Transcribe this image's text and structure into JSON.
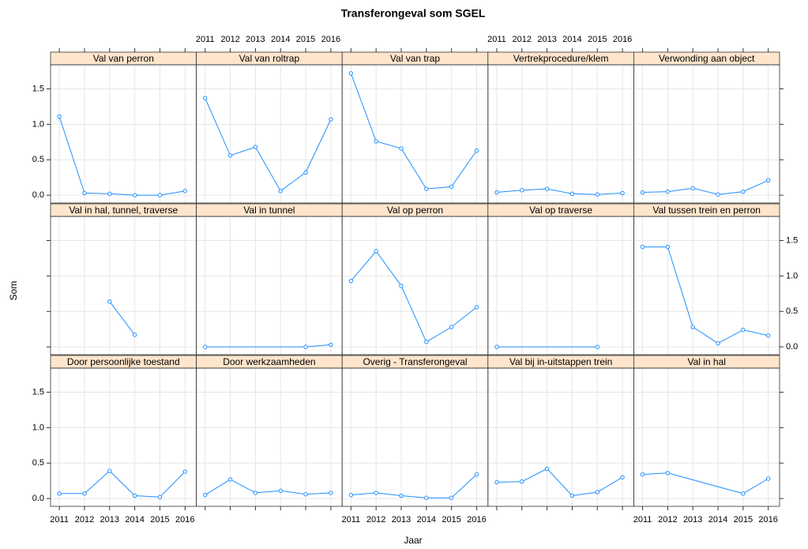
{
  "chart_data": {
    "type": "line",
    "title": "Transferongeval som SGEL",
    "x_label": "Jaar",
    "y_label": "Som",
    "xlim": [
      2010.65,
      2016.45
    ],
    "xticks": [
      2011,
      2012,
      2013,
      2014,
      2015,
      2016
    ],
    "ylim": [
      -0.11,
      1.84
    ],
    "yticks": [
      {
        "value": 0,
        "label": "0.0"
      },
      0.5,
      {
        "value": 1,
        "label": "1.0"
      },
      1.5
    ],
    "grid": true,
    "color": "#1f8fff",
    "series": [
      {
        "name": "Val van perron",
        "x": [
          2011,
          2012,
          2013,
          2014,
          2015,
          2016
        ],
        "values": [
          1.11,
          0.03,
          0.02,
          0.0,
          0.0,
          0.06
        ]
      },
      {
        "name": "Val van roltrap",
        "x": [
          2011,
          2012,
          2013,
          2014,
          2015,
          2016
        ],
        "values": [
          1.37,
          0.56,
          0.68,
          0.06,
          0.32,
          1.07
        ]
      },
      {
        "name": "Val van trap",
        "x": [
          2011,
          2012,
          2013,
          2014,
          2015,
          2016
        ],
        "values": [
          1.72,
          0.76,
          0.66,
          0.09,
          0.12,
          0.63
        ]
      },
      {
        "name": "Vertrekprocedure/klem",
        "x": [
          2011,
          2012,
          2013,
          2014,
          2015,
          2016
        ],
        "values": [
          0.04,
          0.07,
          0.09,
          0.02,
          0.01,
          0.03
        ]
      },
      {
        "name": "Verwonding aan object",
        "x": [
          2011,
          2012,
          2013,
          2014,
          2015,
          2016
        ],
        "values": [
          0.04,
          0.05,
          0.1,
          0.01,
          0.05,
          0.21
        ]
      },
      {
        "name": "Val in hal, tunnel, traverse",
        "x": [
          2013,
          2014
        ],
        "values": [
          0.64,
          0.17
        ]
      },
      {
        "name": "Val in tunnel",
        "x": [
          2011,
          2015,
          2016
        ],
        "values": [
          0.0,
          0.0,
          0.03
        ]
      },
      {
        "name": "Val op perron",
        "x": [
          2011,
          2012,
          2013,
          2014,
          2015,
          2016
        ],
        "values": [
          0.93,
          1.35,
          0.86,
          0.07,
          0.28,
          0.56
        ]
      },
      {
        "name": "Val op traverse",
        "x": [
          2011,
          2015
        ],
        "values": [
          0.0,
          0.0
        ]
      },
      {
        "name": "Val tussen trein en perron",
        "x": [
          2011,
          2012,
          2013,
          2014,
          2015,
          2016
        ],
        "values": [
          1.41,
          1.41,
          0.28,
          0.05,
          0.24,
          0.16
        ]
      },
      {
        "name": "Door persoonlijke toestand",
        "x": [
          2011,
          2012,
          2013,
          2014,
          2015,
          2016
        ],
        "values": [
          0.07,
          0.07,
          0.39,
          0.04,
          0.02,
          0.38
        ]
      },
      {
        "name": "Door werkzaamheden",
        "x": [
          2011,
          2012,
          2013,
          2014,
          2015,
          2016
        ],
        "values": [
          0.05,
          0.27,
          0.08,
          0.11,
          0.06,
          0.08
        ]
      },
      {
        "name": "Overig - Transferongeval",
        "x": [
          2011,
          2012,
          2013,
          2014,
          2015,
          2016
        ],
        "values": [
          0.05,
          0.08,
          0.04,
          0.01,
          0.01,
          0.34
        ]
      },
      {
        "name": "Val bij in-uitstappen trein",
        "x": [
          2011,
          2012,
          2013,
          2014,
          2015,
          2016
        ],
        "values": [
          0.23,
          0.24,
          0.42,
          0.04,
          0.09,
          0.3
        ]
      },
      {
        "name": "Val in hal",
        "x": [
          2011,
          2012,
          2015,
          2016
        ],
        "values": [
          0.34,
          0.36,
          0.07,
          0.28
        ]
      }
    ]
  }
}
